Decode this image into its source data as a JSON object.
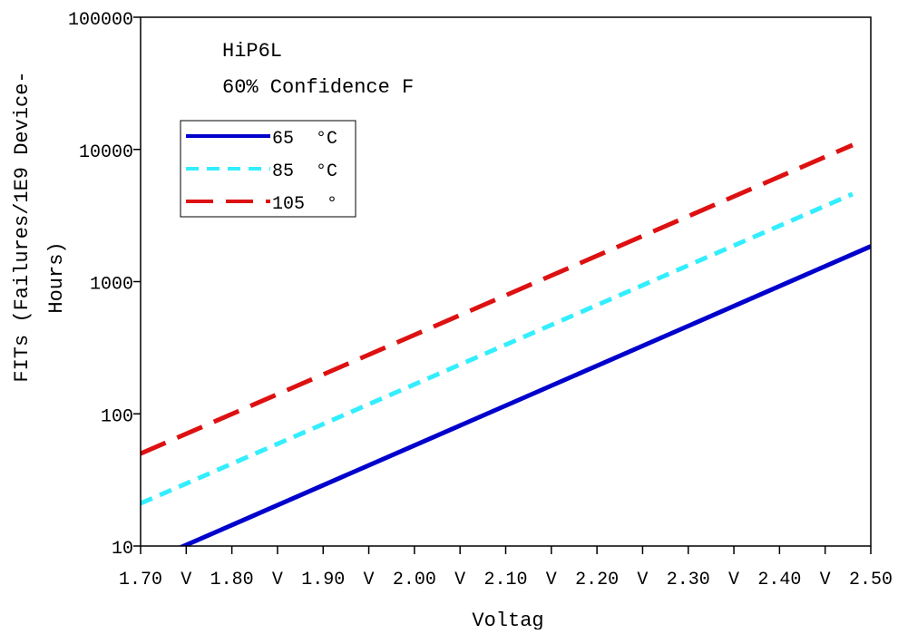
{
  "chart_data": {
    "type": "line",
    "title_lines": [
      "HiP6L",
      "60% Confidence F"
    ],
    "xlabel": "Voltag",
    "ylabel_lines": [
      "FITs (Failures/1E9 Device-",
      "Hours)"
    ],
    "xlim": [
      1.7,
      2.5
    ],
    "ylim": [
      10,
      100000
    ],
    "yscale": "log",
    "grid": false,
    "legend_position": "upper-left",
    "x_tick_values": [
      1.7,
      1.75,
      1.8,
      1.85,
      1.9,
      1.95,
      2.0,
      2.05,
      2.1,
      2.15,
      2.2,
      2.25,
      2.3,
      2.35,
      2.4,
      2.45,
      2.5
    ],
    "x_tick_labels": [
      {
        "value": 1.7,
        "text": "1.70"
      },
      {
        "value": 1.75,
        "text": "V"
      },
      {
        "value": 1.8,
        "text": "1.80"
      },
      {
        "value": 1.85,
        "text": "V"
      },
      {
        "value": 1.9,
        "text": "1.90"
      },
      {
        "value": 1.95,
        "text": "V"
      },
      {
        "value": 2.0,
        "text": "2.00"
      },
      {
        "value": 2.05,
        "text": "V"
      },
      {
        "value": 2.1,
        "text": "2.10"
      },
      {
        "value": 2.15,
        "text": "V"
      },
      {
        "value": 2.2,
        "text": "2.20"
      },
      {
        "value": 2.25,
        "text": "V"
      },
      {
        "value": 2.3,
        "text": "2.30"
      },
      {
        "value": 2.35,
        "text": "V"
      },
      {
        "value": 2.4,
        "text": "2.40"
      },
      {
        "value": 2.45,
        "text": "V"
      },
      {
        "value": 2.5,
        "text": "2.50"
      }
    ],
    "y_tick_values": [
      10,
      100,
      1000,
      10000,
      100000
    ],
    "y_tick_labels": [
      "10",
      "100",
      "1000",
      "10000",
      "100000"
    ],
    "series": [
      {
        "name": "65 °C",
        "legend_text": "65  °C",
        "color": "#0000cc",
        "dash": "solid",
        "x": [
          1.7,
          2.5
        ],
        "y": [
          7.2,
          1850
        ]
      },
      {
        "name": "85 °C",
        "legend_text": "85  °C",
        "color": "#33eeff",
        "dash": "short-dash",
        "x": [
          1.7,
          2.48
        ],
        "y": [
          21,
          4600
        ]
      },
      {
        "name": "105 °C",
        "legend_text": "105  °",
        "color": "#dd1111",
        "dash": "long-dash",
        "x": [
          1.7,
          2.48
        ],
        "y": [
          50,
          10800
        ]
      }
    ]
  }
}
